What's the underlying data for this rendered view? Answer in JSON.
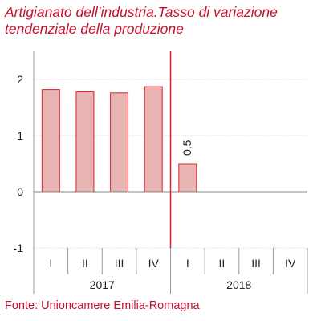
{
  "chart_data": {
    "type": "bar",
    "title_lines": [
      "Artigianato dell’industria.Tasso di variazione",
      "tendenziale della produzione"
    ],
    "categories": [
      "I",
      "II",
      "III",
      "IV",
      "I",
      "II",
      "III",
      "IV"
    ],
    "groups": [
      {
        "label": "2017",
        "categories": [
          "I",
          "II",
          "III",
          "IV"
        ]
      },
      {
        "label": "2018",
        "categories": [
          "I",
          "II",
          "III",
          "IV"
        ]
      }
    ],
    "values": [
      1.82,
      1.78,
      1.76,
      1.87,
      0.5,
      null,
      null,
      null
    ],
    "data_labels": [
      "",
      "",
      "",
      "",
      "0,5",
      "",
      "",
      ""
    ],
    "y_ticks": [
      2,
      1,
      0,
      -1
    ],
    "y_tick_labels": [
      "2",
      "1",
      "0",
      "-1"
    ],
    "ylim": [
      -1,
      2.5
    ],
    "grid": "horizontal",
    "vertical_marker_between_groups": true,
    "bar_color": "#e8b3b3",
    "bar_edge_color": "#e0202a",
    "marker_color": "#e0202a",
    "source": "Fonte: Unioncamere Emilia-Romagna"
  }
}
